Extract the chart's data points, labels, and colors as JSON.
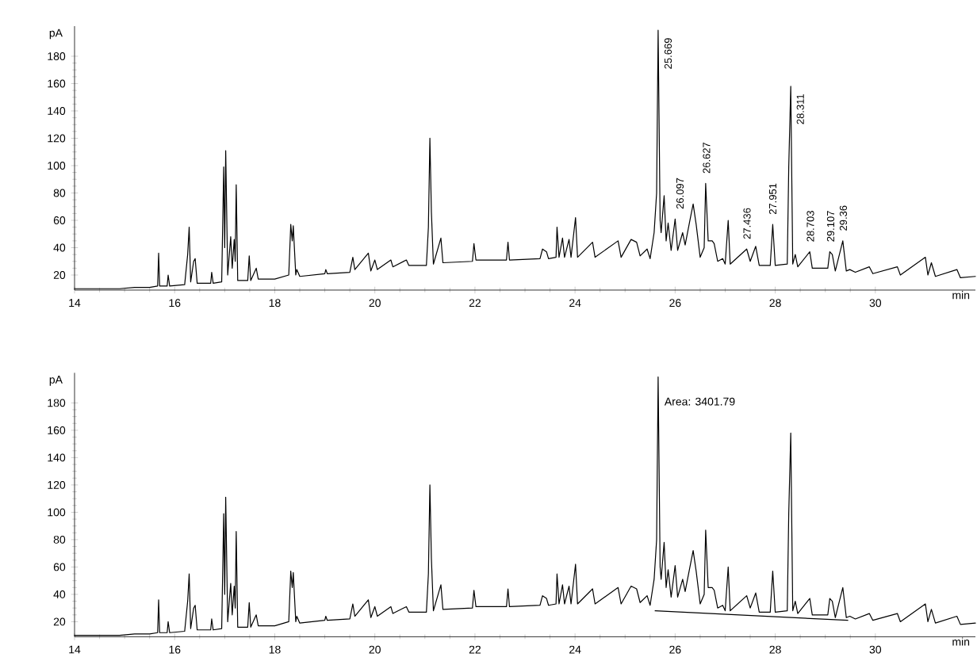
{
  "chart_data": [
    {
      "type": "line",
      "xlabel": "min",
      "ylabel": "pA",
      "xlim": [
        14,
        32
      ],
      "ylim": [
        9,
        202
      ],
      "xticks": [
        14,
        16,
        18,
        20,
        22,
        24,
        26,
        28,
        30
      ],
      "yticks": [
        20,
        40,
        60,
        80,
        100,
        120,
        140,
        160,
        180
      ],
      "series": [
        {
          "color": "#000000",
          "x": [
            14,
            14.3,
            14.6,
            14.9,
            15.2,
            15.5,
            15.66,
            15.68,
            15.7,
            15.85,
            15.87,
            15.9,
            16.2,
            16.26,
            16.29,
            16.32,
            16.38,
            16.41,
            16.45,
            16.72,
            16.74,
            16.77,
            16.94,
            16.98,
            17.0,
            17.02,
            17.06,
            17.12,
            17.15,
            17.19,
            17.21,
            17.23,
            17.26,
            17.46,
            17.49,
            17.52,
            17.63,
            17.67,
            18.0,
            18.28,
            18.32,
            18.35,
            18.37,
            18.42,
            18.44,
            18.5,
            19.0,
            19.02,
            19.05,
            19.5,
            19.56,
            19.6,
            19.87,
            19.92,
            20.0,
            20.05,
            20.32,
            20.36,
            20.63,
            20.68,
            21.03,
            21.07,
            21.1,
            21.13,
            21.17,
            21.32,
            21.36,
            21.95,
            21.98,
            22.02,
            22.63,
            22.66,
            22.69,
            23.3,
            23.35,
            23.43,
            23.47,
            23.62,
            23.64,
            23.68,
            23.75,
            23.79,
            23.88,
            23.92,
            24.01,
            24.05,
            24.35,
            24.4,
            24.86,
            24.92,
            25.12,
            25.23,
            25.3,
            25.44,
            25.5,
            25.58,
            25.63,
            25.66,
            25.7,
            25.72,
            25.78,
            25.82,
            25.86,
            25.92,
            26.0,
            26.05,
            26.15,
            26.2,
            26.29,
            26.36,
            26.42,
            26.5,
            26.58,
            26.61,
            26.66,
            26.74,
            26.78,
            26.85,
            26.95,
            27.0,
            27.06,
            27.1,
            27.43,
            27.5,
            27.61,
            27.68,
            27.9,
            27.95,
            28.0,
            28.24,
            28.27,
            28.31,
            28.35,
            28.4,
            28.45,
            28.69,
            28.74,
            29.05,
            29.09,
            29.14,
            29.2,
            29.35,
            29.42,
            29.49,
            29.6,
            29.88,
            29.95,
            30.44,
            30.5,
            31.0,
            31.05,
            31.12,
            31.2,
            31.63,
            31.7,
            32.0
          ],
          "values": [
            10,
            10,
            10,
            10,
            11,
            11,
            12,
            36,
            12,
            12,
            20,
            12,
            13,
            35,
            55,
            15,
            30,
            32,
            14,
            14,
            22,
            14,
            15,
            99,
            40,
            111,
            20,
            48,
            25,
            46,
            30,
            86,
            16,
            16,
            34,
            16,
            25,
            17,
            17,
            20,
            57,
            45,
            56,
            20,
            24,
            19,
            21,
            24,
            21,
            22,
            33,
            24,
            36,
            23,
            31,
            24,
            31,
            26,
            31,
            27,
            27,
            55,
            120,
            66,
            28,
            47,
            29,
            30,
            43,
            31,
            31,
            44,
            31,
            32,
            39,
            37,
            32,
            33,
            55,
            33,
            47,
            33,
            46,
            33,
            62,
            33,
            44,
            33,
            45,
            33,
            46,
            44,
            34,
            39,
            32,
            51,
            80,
            199,
            60,
            51,
            78,
            45,
            58,
            38,
            61,
            38,
            51,
            42,
            59,
            72,
            57,
            33,
            40,
            87,
            45,
            45,
            43,
            30,
            32,
            28,
            60,
            28,
            39,
            30,
            41,
            27,
            27,
            57,
            27,
            28,
            99,
            158,
            28,
            35,
            26,
            37,
            25,
            25,
            37,
            35,
            23,
            45,
            23,
            24,
            22,
            26,
            21,
            26,
            20,
            33,
            20,
            29,
            19,
            24,
            18,
            19
          ]
        }
      ],
      "annotations": [
        {
          "text": "25.669",
          "x": 25.669,
          "y": 199
        },
        {
          "text": "26.097",
          "x": 26.097,
          "y": 61
        },
        {
          "text": "26.627",
          "x": 26.627,
          "y": 87
        },
        {
          "text": "27.436",
          "x": 27.436,
          "y": 39
        },
        {
          "text": "27.951",
          "x": 27.951,
          "y": 57
        },
        {
          "text": "28.311",
          "x": 28.311,
          "y": 158
        },
        {
          "text": "28.703",
          "x": 28.703,
          "y": 37
        },
        {
          "text": "29.107",
          "x": 29.107,
          "y": 37
        },
        {
          "text": "29.36",
          "x": 29.36,
          "y": 45
        }
      ]
    },
    {
      "type": "line",
      "xlabel": "min",
      "ylabel": "pA",
      "xlim": [
        14,
        32
      ],
      "ylim": [
        9,
        202
      ],
      "xticks": [
        14,
        16,
        18,
        20,
        22,
        24,
        26,
        28,
        30
      ],
      "yticks": [
        20,
        40,
        60,
        80,
        100,
        120,
        140,
        160,
        180
      ],
      "series": [
        {
          "color": "#000000",
          "x": [
            14,
            14.3,
            14.6,
            14.9,
            15.2,
            15.5,
            15.66,
            15.68,
            15.7,
            15.85,
            15.87,
            15.9,
            16.2,
            16.26,
            16.29,
            16.32,
            16.38,
            16.41,
            16.45,
            16.72,
            16.74,
            16.77,
            16.94,
            16.98,
            17.0,
            17.02,
            17.06,
            17.12,
            17.15,
            17.19,
            17.21,
            17.23,
            17.26,
            17.46,
            17.49,
            17.52,
            17.63,
            17.67,
            18.0,
            18.28,
            18.32,
            18.35,
            18.37,
            18.42,
            18.44,
            18.5,
            19.0,
            19.02,
            19.05,
            19.5,
            19.56,
            19.6,
            19.87,
            19.92,
            20.0,
            20.05,
            20.32,
            20.36,
            20.63,
            20.68,
            21.03,
            21.07,
            21.1,
            21.13,
            21.17,
            21.32,
            21.36,
            21.95,
            21.98,
            22.02,
            22.63,
            22.66,
            22.69,
            23.3,
            23.35,
            23.43,
            23.47,
            23.62,
            23.64,
            23.68,
            23.75,
            23.79,
            23.88,
            23.92,
            24.01,
            24.05,
            24.35,
            24.4,
            24.86,
            24.92,
            25.12,
            25.23,
            25.3,
            25.44,
            25.5,
            25.58,
            25.63,
            25.66,
            25.7,
            25.72,
            25.78,
            25.82,
            25.86,
            25.92,
            26.0,
            26.05,
            26.15,
            26.2,
            26.29,
            26.36,
            26.42,
            26.5,
            26.58,
            26.61,
            26.66,
            26.74,
            26.78,
            26.85,
            26.95,
            27.0,
            27.06,
            27.1,
            27.43,
            27.5,
            27.61,
            27.68,
            27.9,
            27.95,
            28.0,
            28.24,
            28.27,
            28.31,
            28.35,
            28.4,
            28.45,
            28.69,
            28.74,
            29.05,
            29.09,
            29.14,
            29.2,
            29.35,
            29.42,
            29.49,
            29.6,
            29.88,
            29.95,
            30.44,
            30.5,
            31.0,
            31.05,
            31.12,
            31.2,
            31.63,
            31.7,
            32.0
          ],
          "values": [
            10,
            10,
            10,
            10,
            11,
            11,
            12,
            36,
            12,
            12,
            20,
            12,
            13,
            35,
            55,
            15,
            30,
            32,
            14,
            14,
            22,
            14,
            15,
            99,
            40,
            111,
            20,
            48,
            25,
            46,
            30,
            86,
            16,
            16,
            34,
            16,
            25,
            17,
            17,
            20,
            57,
            45,
            56,
            20,
            24,
            19,
            21,
            24,
            21,
            22,
            33,
            24,
            36,
            23,
            31,
            24,
            31,
            26,
            31,
            27,
            27,
            55,
            120,
            66,
            28,
            47,
            29,
            30,
            43,
            31,
            31,
            44,
            31,
            32,
            39,
            37,
            32,
            33,
            55,
            33,
            47,
            33,
            46,
            33,
            62,
            33,
            44,
            33,
            45,
            33,
            46,
            44,
            34,
            39,
            32,
            51,
            80,
            199,
            60,
            51,
            78,
            45,
            58,
            38,
            61,
            38,
            51,
            42,
            59,
            72,
            57,
            33,
            40,
            87,
            45,
            45,
            43,
            30,
            32,
            28,
            60,
            28,
            39,
            30,
            41,
            27,
            27,
            57,
            27,
            28,
            99,
            158,
            28,
            35,
            26,
            37,
            25,
            25,
            37,
            35,
            23,
            45,
            23,
            24,
            22,
            26,
            21,
            26,
            20,
            33,
            20,
            29,
            19,
            24,
            18,
            19
          ]
        },
        {
          "color": "#000000",
          "x": [
            25.6,
            29.45
          ],
          "values": [
            28,
            21
          ]
        }
      ],
      "annotations": [
        {
          "text": "Area: 3401.79",
          "x": 25.669,
          "y": 181
        }
      ]
    }
  ]
}
